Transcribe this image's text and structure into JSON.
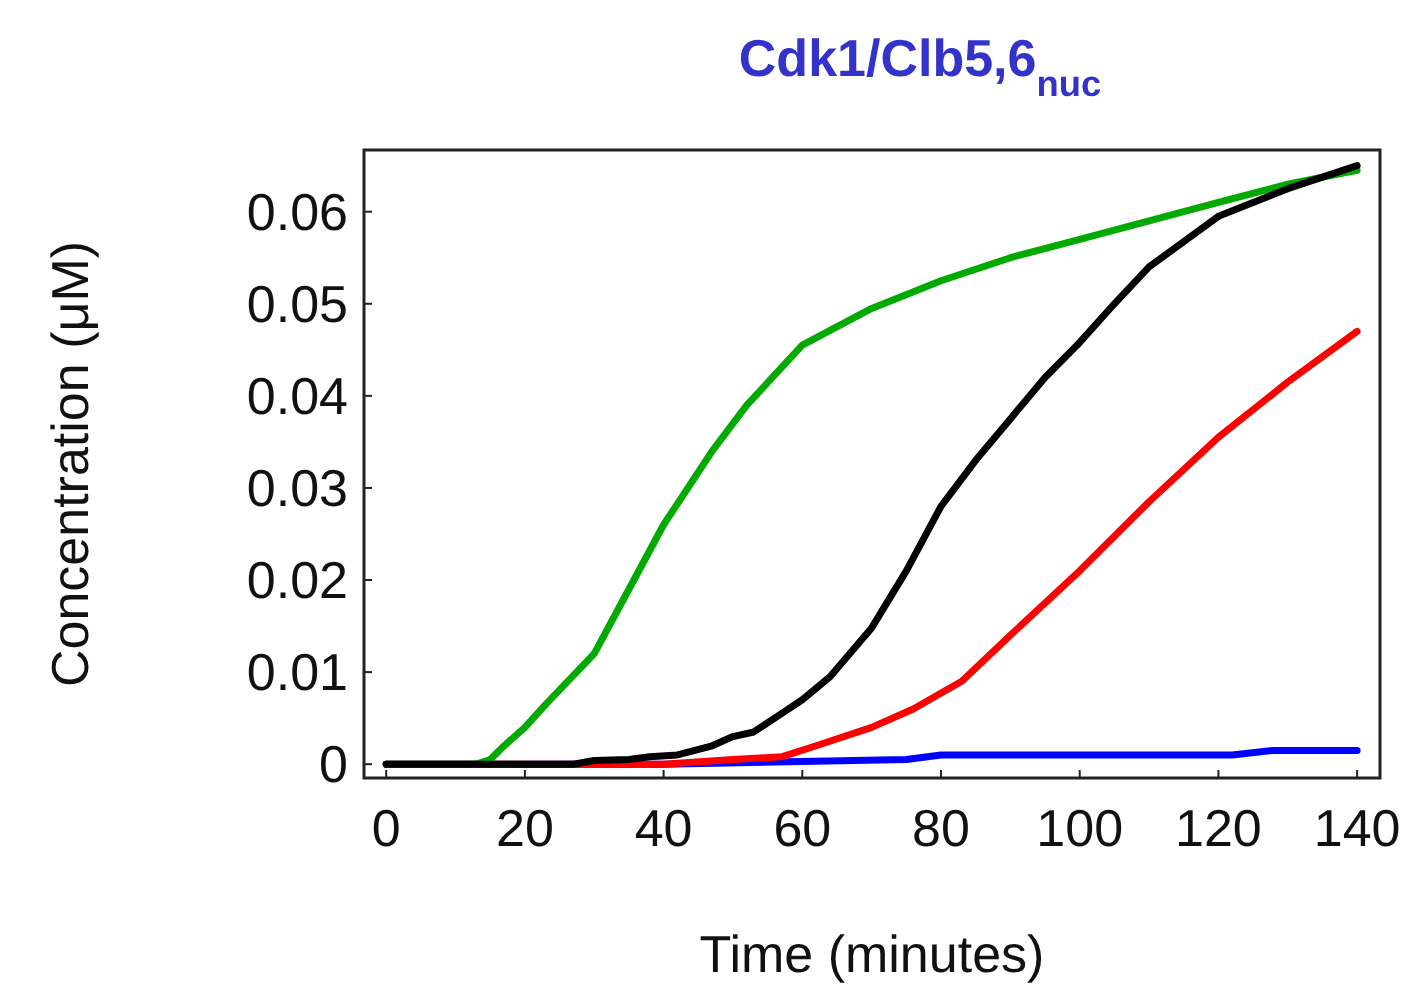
{
  "chart_data": {
    "type": "line",
    "title": "Cdk1/Clb5,6$_{nuc}$",
    "xlabel": "Time (minutes)",
    "ylabel": "Concentration (μM)",
    "xlim": [
      -3.2,
      143.3
    ],
    "ylim": [
      -0.0015,
      0.0667
    ],
    "xticks": [
      0,
      20,
      40,
      60,
      80,
      100,
      120,
      140
    ],
    "yticks": [
      0,
      0.01,
      0.02,
      0.03,
      0.04,
      0.05,
      0.06
    ],
    "grid": false,
    "marker": "none",
    "line_style": "solid",
    "series": [
      {
        "color": "#0000ff",
        "x": [
          0,
          40,
          45,
          75,
          80,
          122,
          128,
          140
        ],
        "values": [
          0,
          0,
          null,
          0.0005,
          0.001,
          0.001,
          0.0015,
          0.0015
        ]
      },
      {
        "color": "#ff0000",
        "x": [
          0,
          40,
          50,
          57,
          62,
          70,
          76,
          83,
          90,
          100,
          110,
          120,
          130,
          140
        ],
        "values": [
          0,
          0,
          0.0005,
          0.0008,
          0.002,
          0.004,
          0.006,
          0.009,
          0.014,
          0.021,
          0.0285,
          0.0355,
          0.0415,
          0.047
        ]
      },
      {
        "color": "#00aa00",
        "x": [
          0,
          13,
          15,
          17,
          20,
          23,
          30,
          35,
          40,
          47,
          52,
          60,
          70,
          80,
          90,
          100,
          110,
          120,
          130,
          140
        ],
        "values": [
          0,
          0,
          0.0005,
          0.002,
          0.004,
          0.0065,
          0.012,
          0.019,
          0.026,
          0.034,
          0.039,
          0.0455,
          0.0495,
          0.0525,
          0.055,
          0.057,
          0.059,
          0.061,
          0.063,
          0.0645
        ]
      },
      {
        "color": "#000000",
        "x": [
          0,
          27,
          30,
          35,
          38,
          42,
          47,
          50,
          53,
          57,
          60,
          64,
          70,
          75,
          80,
          85,
          90,
          95,
          100,
          105,
          110,
          120,
          130,
          140
        ],
        "values": [
          0,
          0,
          0.0004,
          0.0005,
          0.0008,
          0.001,
          0.002,
          0.003,
          0.0035,
          0.0055,
          0.007,
          0.0095,
          0.0148,
          0.021,
          0.028,
          0.033,
          0.0375,
          0.042,
          0.0458,
          0.05,
          0.054,
          0.0595,
          0.0625,
          0.065
        ]
      }
    ]
  }
}
